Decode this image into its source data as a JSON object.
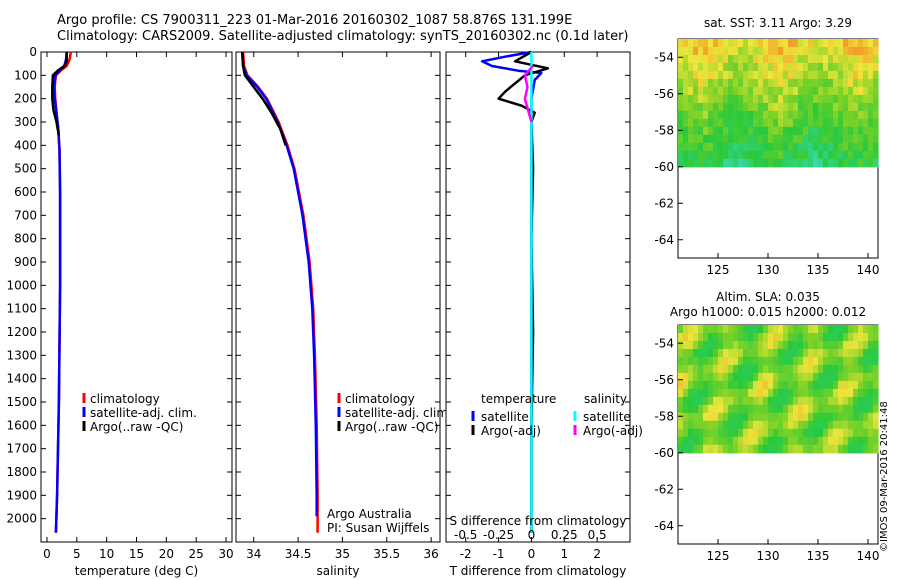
{
  "header": {
    "title_line1": "Argo profile: CS 7900311_223 01-Mar-2016 20160302_1087 58.876S 131.199E",
    "title_line2": "Climatology: CARS2009. Satellite-adjusted climatology: synTS_20160302.nc (0.1d later)"
  },
  "stamp": "©IMOS 09-Mar-2016 20:41:48",
  "colors": {
    "climatology": "#ff0000",
    "satellite": "#0000ff",
    "argo": "#000000",
    "salinity_satellite": "#00ffff",
    "salinity_argo": "#ff00ff"
  },
  "chart_data": [
    {
      "type": "line",
      "xlabel": "temperature (deg C)",
      "ylabel": "",
      "xlim": [
        -1,
        31
      ],
      "ylim": [
        2100,
        0
      ],
      "xticks": [
        0,
        5,
        10,
        15,
        20,
        25,
        30
      ],
      "yticks": [
        0,
        100,
        200,
        300,
        400,
        500,
        600,
        700,
        800,
        900,
        1000,
        1100,
        1200,
        1300,
        1400,
        1500,
        1600,
        1700,
        1800,
        1900,
        2000
      ],
      "legend": [
        "climatology",
        "satellite-adj. clim.",
        "Argo(..raw -QC)"
      ],
      "series": [
        {
          "name": "climatology",
          "color": "#ff0000",
          "points": [
            [
              4.0,
              0
            ],
            [
              3.8,
              30
            ],
            [
              3.3,
              60
            ],
            [
              2.3,
              80
            ],
            [
              1.5,
              100
            ],
            [
              1.3,
              150
            ],
            [
              1.4,
              200
            ],
            [
              1.6,
              260
            ],
            [
              1.9,
              330
            ],
            [
              2.1,
              420
            ],
            [
              2.2,
              600
            ],
            [
              2.2,
              1000
            ],
            [
              2.0,
              1500
            ],
            [
              1.7,
              1900
            ],
            [
              1.5,
              2060
            ]
          ]
        },
        {
          "name": "satellite-adj. clim.",
          "color": "#0000ff",
          "points": [
            [
              3.3,
              0
            ],
            [
              3.2,
              30
            ],
            [
              2.9,
              60
            ],
            [
              2.1,
              80
            ],
            [
              1.4,
              100
            ],
            [
              1.2,
              150
            ],
            [
              1.3,
              200
            ],
            [
              1.6,
              260
            ],
            [
              1.9,
              330
            ],
            [
              2.1,
              420
            ],
            [
              2.2,
              600
            ],
            [
              2.2,
              1000
            ],
            [
              2.0,
              1500
            ],
            [
              1.7,
              1900
            ],
            [
              1.5,
              2060
            ]
          ]
        },
        {
          "name": "Argo(..raw -QC)",
          "color": "#000000",
          "points": [
            [
              3.3,
              0
            ],
            [
              3.3,
              40
            ],
            [
              2.9,
              60
            ],
            [
              1.8,
              80
            ],
            [
              1.0,
              100
            ],
            [
              0.9,
              150
            ],
            [
              0.9,
              200
            ],
            [
              1.1,
              250
            ],
            [
              1.6,
              300
            ],
            [
              2.0,
              360
            ]
          ]
        }
      ]
    },
    {
      "type": "line",
      "xlabel": "salinity",
      "ylabel": "",
      "xlim": [
        33.8,
        36.1
      ],
      "ylim": [
        2100,
        0
      ],
      "xticks": [
        34,
        34.5,
        35,
        35.5,
        36
      ],
      "yticks": [],
      "legend": [
        "climatology",
        "satellite-adj. clim.",
        "Argo(..raw -QC)"
      ],
      "annotation": [
        "Argo Australia",
        "PI: Susan Wijffels"
      ],
      "series": [
        {
          "name": "climatology",
          "color": "#ff0000",
          "points": [
            [
              33.88,
              0
            ],
            [
              33.89,
              60
            ],
            [
              33.93,
              100
            ],
            [
              34.05,
              150
            ],
            [
              34.15,
              200
            ],
            [
              34.28,
              300
            ],
            [
              34.38,
              400
            ],
            [
              34.46,
              500
            ],
            [
              34.56,
              700
            ],
            [
              34.63,
              900
            ],
            [
              34.67,
              1100
            ],
            [
              34.69,
              1300
            ],
            [
              34.71,
              1600
            ],
            [
              34.72,
              1900
            ],
            [
              34.72,
              2060
            ]
          ]
        },
        {
          "name": "satellite-adj. clim.",
          "color": "#0000ff",
          "points": [
            [
              33.87,
              0
            ],
            [
              33.88,
              60
            ],
            [
              33.92,
              100
            ],
            [
              34.04,
              150
            ],
            [
              34.14,
              200
            ],
            [
              34.27,
              300
            ],
            [
              34.37,
              400
            ],
            [
              34.45,
              500
            ],
            [
              34.55,
              700
            ],
            [
              34.62,
              900
            ],
            [
              34.66,
              1100
            ],
            [
              34.68,
              1300
            ],
            [
              34.7,
              1600
            ],
            [
              34.71,
              1900
            ],
            [
              34.71,
              1990
            ]
          ]
        },
        {
          "name": "Argo(..raw -QC)",
          "color": "#000000",
          "points": [
            [
              33.87,
              0
            ],
            [
              33.88,
              60
            ],
            [
              33.9,
              100
            ],
            [
              34.0,
              150
            ],
            [
              34.1,
              200
            ],
            [
              34.2,
              260
            ],
            [
              34.3,
              330
            ],
            [
              34.36,
              400
            ]
          ]
        }
      ]
    },
    {
      "type": "line",
      "xlabel": "T difference from climatology",
      "x2label": "S difference from climatology",
      "xlim": [
        -2.6,
        3.0
      ],
      "x2lim": [
        -0.65,
        0.75
      ],
      "ylim": [
        2100,
        0
      ],
      "xticks": [
        -2,
        -1,
        0,
        1,
        2
      ],
      "x2ticks": [
        -0.5,
        -0.25,
        0,
        0.25,
        0.5
      ],
      "legend_temperature_title": "temperature",
      "legend_salinity_title": "salinity",
      "legend": [
        "satellite",
        "Argo(-adj)",
        "satellite",
        "Argo(-adj)"
      ],
      "series": [
        {
          "name": "satellite",
          "group": "temperature",
          "color": "#0000ff",
          "points": [
            [
              0,
              0
            ],
            [
              -0.8,
              20
            ],
            [
              -1.5,
              40
            ],
            [
              -1.2,
              60
            ],
            [
              -0.4,
              80
            ],
            [
              0.3,
              90
            ],
            [
              0.1,
              120
            ],
            [
              0,
              200
            ],
            [
              0,
              300
            ],
            [
              0,
              600
            ],
            [
              0,
              1000
            ],
            [
              0,
              1500
            ],
            [
              0,
              2060
            ]
          ]
        },
        {
          "name": "Argo(-adj)",
          "group": "temperature",
          "color": "#000000",
          "points": [
            [
              0,
              0
            ],
            [
              -0.5,
              40
            ],
            [
              0.5,
              70
            ],
            [
              -0.2,
              100
            ],
            [
              -0.8,
              170
            ],
            [
              -1.0,
              200
            ],
            [
              -0.3,
              230
            ],
            [
              0.1,
              260
            ],
            [
              0,
              300
            ],
            [
              0.05,
              500
            ],
            [
              0,
              800
            ],
            [
              0.05,
              1200
            ],
            [
              0,
              1600
            ],
            [
              0,
              2060
            ]
          ]
        },
        {
          "name": "satellite",
          "group": "salinity",
          "color": "#00ffff",
          "points": [
            [
              0,
              0
            ],
            [
              0,
              100
            ],
            [
              0,
              400
            ],
            [
              0,
              1000
            ],
            [
              0,
              2060
            ]
          ]
        },
        {
          "name": "Argo(-adj)",
          "group": "salinity",
          "color": "#ff00ff",
          "points": [
            [
              0.01,
              60
            ],
            [
              -0.05,
              100
            ],
            [
              -0.03,
              150
            ],
            [
              -0.05,
              200
            ],
            [
              -0.02,
              260
            ],
            [
              0,
              300
            ]
          ]
        }
      ]
    },
    {
      "type": "heatmap",
      "title": "sat. SST: 3.11 Argo: 3.29",
      "xlim": [
        121,
        141
      ],
      "ylim": [
        -65,
        -53
      ],
      "xticks": [
        125,
        130,
        135,
        140
      ],
      "yticks": [
        -54,
        -56,
        -58,
        -60,
        -62,
        -64
      ],
      "data_extent": {
        "lon": [
          121,
          141
        ],
        "lat": [
          -60,
          -53
        ]
      }
    },
    {
      "type": "heatmap",
      "title_line1": "Altim. SLA: 0.035",
      "title_line2": "Argo h1000: 0.015 h2000: 0.012",
      "xlim": [
        121,
        141
      ],
      "ylim": [
        -65,
        -53
      ],
      "xticks": [
        125,
        130,
        135,
        140
      ],
      "yticks": [
        -54,
        -56,
        -58,
        -60,
        -62,
        -64
      ],
      "data_extent": {
        "lon": [
          121,
          141
        ],
        "lat": [
          -60,
          -53
        ]
      }
    }
  ]
}
